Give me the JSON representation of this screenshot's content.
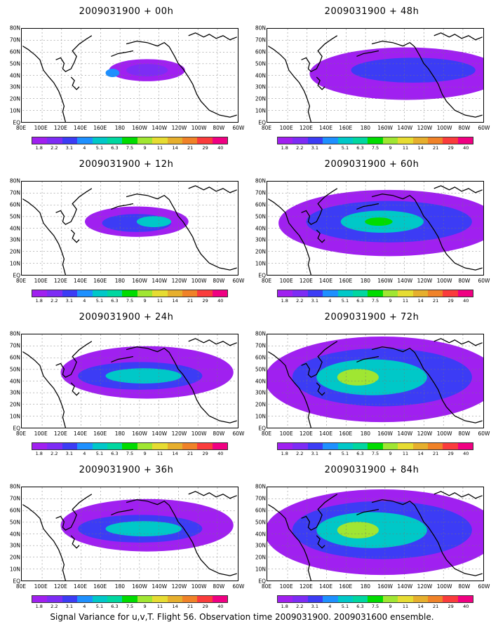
{
  "panels": [
    {
      "title": "2009031900 + 00h"
    },
    {
      "title": "2009031900 + 48h"
    },
    {
      "title": "2009031900 + 12h"
    },
    {
      "title": "2009031900 + 60h"
    },
    {
      "title": "2009031900 + 24h"
    },
    {
      "title": "2009031900 + 72h"
    },
    {
      "title": "2009031900 + 36h"
    },
    {
      "title": "2009031900 + 84h"
    }
  ],
  "lat_labels": [
    "80N",
    "70N",
    "60N",
    "50N",
    "40N",
    "30N",
    "20N",
    "10N",
    "EQ"
  ],
  "lon_labels": [
    "80E",
    "100E",
    "120E",
    "140E",
    "160E",
    "180",
    "160W",
    "140W",
    "120W",
    "100W",
    "80W",
    "60W"
  ],
  "colorbar": {
    "labels": [
      "1.8",
      "2.2",
      "3.1",
      "4",
      "5.1",
      "6.3",
      "7.5",
      "9",
      "11",
      "14",
      "21",
      "29",
      "40"
    ],
    "colors": [
      "#a020f0",
      "#7d2cf5",
      "#3c3cf5",
      "#1e90ff",
      "#00c8c8",
      "#00d7a0",
      "#00dc00",
      "#a0e632",
      "#e6dc32",
      "#e6af2d",
      "#f08228",
      "#fa3c3c",
      "#f00082"
    ]
  },
  "footer": "Signal Variance for u,v,T. Flight 56. Observation time 2009031900. 2009031600 ensemble."
}
